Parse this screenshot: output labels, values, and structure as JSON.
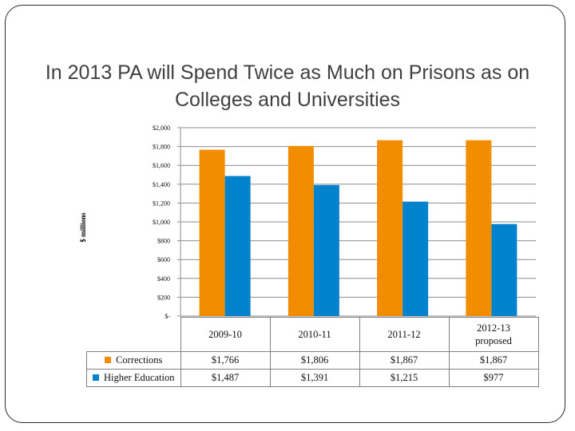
{
  "slide": {
    "title": "In 2013 PA will Spend Twice as Much on Prisons as on Colleges and Universities"
  },
  "chart_data": {
    "type": "bar",
    "categories": [
      "2009-10",
      "2010-11",
      "2011-12",
      "2012-13 proposed"
    ],
    "category_lines": [
      [
        "2009-10"
      ],
      [
        "2010-11"
      ],
      [
        "2011-12"
      ],
      [
        "2012-13",
        "proposed"
      ]
    ],
    "series": [
      {
        "name": "Corrections",
        "color": "#f28c00",
        "values": [
          1766,
          1806,
          1867,
          1867
        ],
        "labels": [
          "$1,766",
          "$1,806",
          "$1,867",
          "$1,867"
        ]
      },
      {
        "name": "Higher Education",
        "color": "#0083cc",
        "values": [
          1487,
          1391,
          1215,
          977
        ],
        "labels": [
          "$1,487",
          "$1,391",
          "$1,215",
          "$977"
        ]
      }
    ],
    "ylabel": "$ millions",
    "ylim": [
      0,
      2000
    ],
    "yticks": [
      0,
      200,
      400,
      600,
      800,
      1000,
      1200,
      1400,
      1600,
      1800,
      2000
    ],
    "ytick_labels": [
      "$-",
      "$200",
      "$400",
      "$600",
      "$800",
      "$1,000",
      "$1,200",
      "$1,400",
      "$1,600",
      "$1,800",
      "$2,000"
    ],
    "grid": true,
    "legend": "data table below chart"
  }
}
